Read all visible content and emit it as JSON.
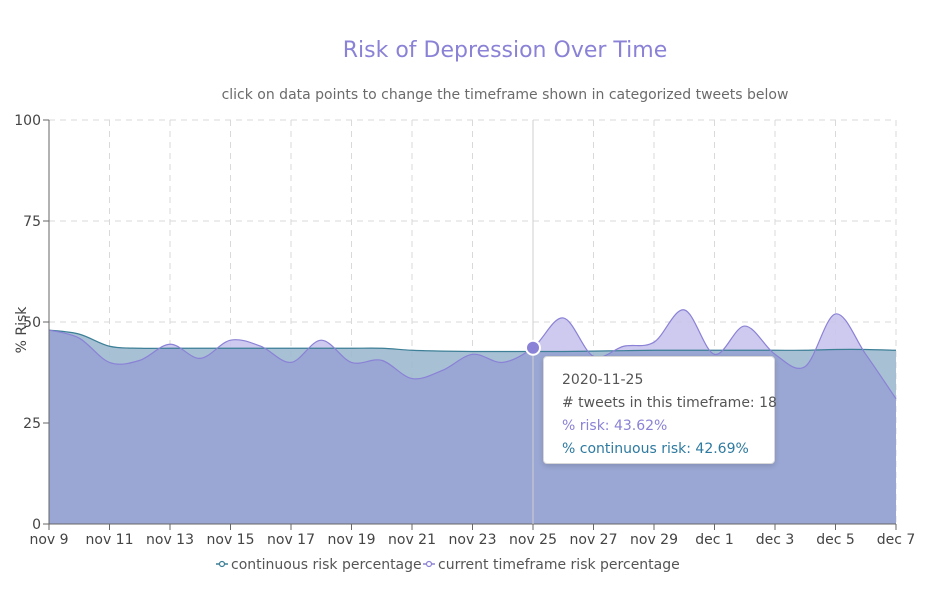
{
  "colors": {
    "title": "#8a82d6",
    "current_line": "#8a82d6",
    "current_fill": "#c9c3ec",
    "continuous_line": "#3c7f96",
    "continuous_fill": "#9eb9cf",
    "overlap_fill": "#9aa7d4",
    "grid": "#d9d9d9"
  },
  "chart_data": {
    "type": "area",
    "title": "Risk of Depression Over Time",
    "subtitle": "click on data points to change the timeframe shown in categorized tweets below",
    "ylabel": "% Risk",
    "xlabel": "",
    "ylim": [
      0,
      100
    ],
    "yticks": [
      "0",
      "25",
      "50",
      "75",
      "100"
    ],
    "xticks": [
      "nov 9",
      "nov 11",
      "nov 13",
      "nov 15",
      "nov 17",
      "nov 19",
      "nov 21",
      "nov 23",
      "nov 25",
      "nov 27",
      "nov 29",
      "dec 1",
      "dec 3",
      "dec 5",
      "dec 7"
    ],
    "grid": true,
    "legend_position": "bottom",
    "categories": [
      "nov 9",
      "nov 10",
      "nov 11",
      "nov 12",
      "nov 13",
      "nov 14",
      "nov 15",
      "nov 16",
      "nov 17",
      "nov 18",
      "nov 19",
      "nov 20",
      "nov 21",
      "nov 22",
      "nov 23",
      "nov 24",
      "nov 25",
      "nov 26",
      "nov 27",
      "nov 28",
      "nov 29",
      "nov 30",
      "dec 1",
      "dec 2",
      "dec 3",
      "dec 4",
      "dec 5",
      "dec 6",
      "dec 7"
    ],
    "series": [
      {
        "name": "continuous risk percentage",
        "values": [
          48,
          47,
          44,
          43.5,
          43.5,
          43.5,
          43.5,
          43.5,
          43.5,
          43.5,
          43.5,
          43.5,
          43,
          42.8,
          42.7,
          42.7,
          42.69,
          42.7,
          42.8,
          42.9,
          43,
          43,
          43,
          43,
          43,
          43,
          43.2,
          43.2,
          43
        ]
      },
      {
        "name": "current timeframe risk percentage",
        "values": [
          48,
          46,
          40,
          40.5,
          44.5,
          41,
          45.5,
          44,
          40,
          45.5,
          40,
          40.5,
          36,
          38,
          42,
          40,
          43.62,
          51,
          41.5,
          44,
          45,
          53,
          42,
          49,
          42,
          39,
          52,
          42,
          31
        ]
      }
    ],
    "tooltip": {
      "date": "2020-11-25",
      "tweets": "# tweets in this timeframe: 18",
      "risk": "% risk: 43.62%",
      "continuous": "% continuous risk: 42.69%"
    }
  }
}
